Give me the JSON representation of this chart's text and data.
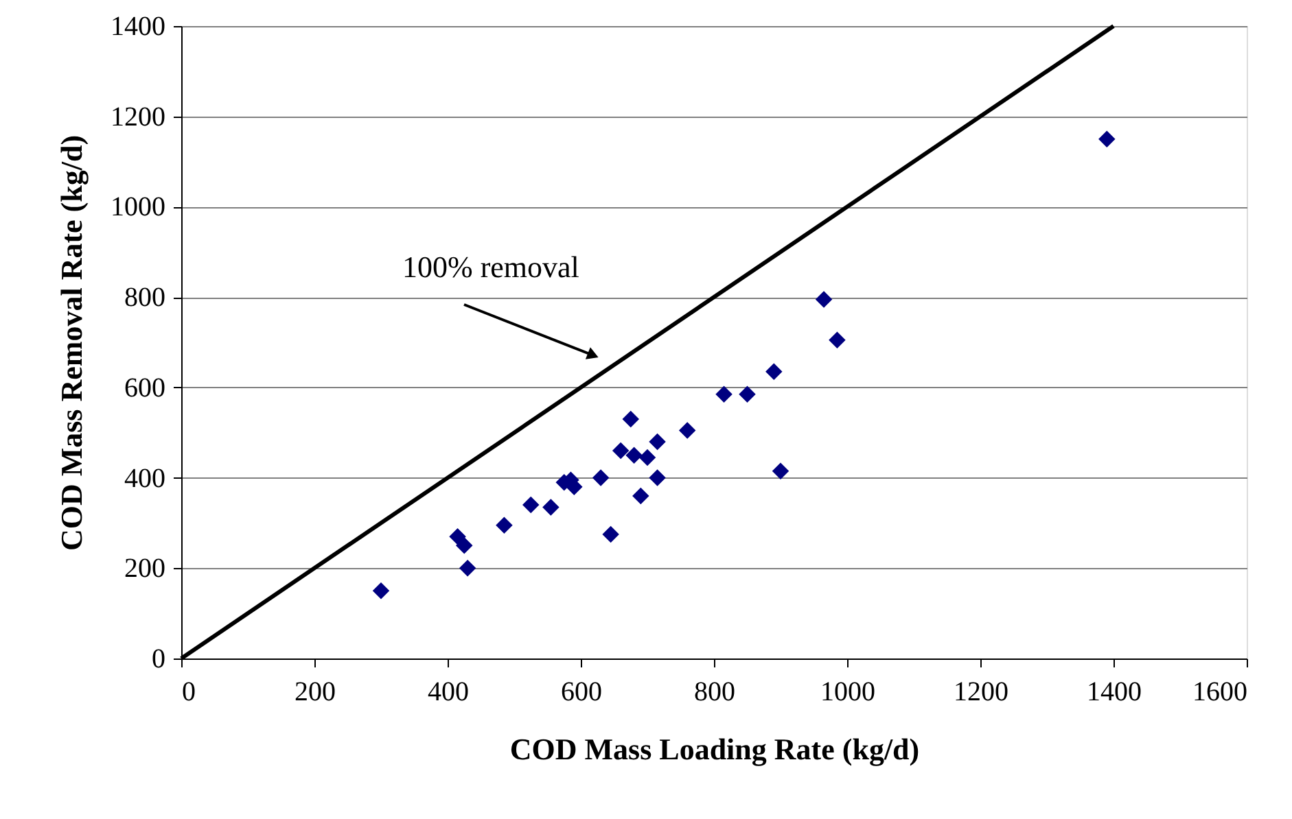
{
  "chart_data": {
    "type": "scatter",
    "xlabel": "COD Mass Loading Rate (kg/d)",
    "ylabel": "COD Mass Removal Rate (kg/d)",
    "xlim": [
      0,
      1600
    ],
    "xticks": [
      0,
      200,
      400,
      600,
      800,
      1000,
      1200,
      1400,
      1600
    ],
    "ylim": [
      0,
      1400
    ],
    "yticks": [
      0,
      200,
      400,
      600,
      800,
      1000,
      1200,
      1400
    ],
    "grid": "y",
    "annotations": [
      "100% removal"
    ],
    "series": [
      {
        "color": "#000080",
        "marker": "diamond",
        "x": [
          300,
          415,
          425,
          430,
          485,
          525,
          555,
          575,
          585,
          590,
          630,
          645,
          660,
          675,
          680,
          690,
          700,
          715,
          715,
          760,
          815,
          850,
          890,
          900,
          965,
          985,
          1390
        ],
        "values": [
          150,
          270,
          250,
          200,
          295,
          340,
          335,
          390,
          395,
          380,
          400,
          275,
          460,
          530,
          450,
          360,
          445,
          480,
          400,
          505,
          585,
          585,
          635,
          415,
          795,
          705,
          1150
        ]
      },
      {
        "type": "line",
        "color": "#000000",
        "line_style": "solid",
        "x": [
          0,
          1400
        ],
        "values": [
          0,
          1400
        ]
      }
    ]
  }
}
